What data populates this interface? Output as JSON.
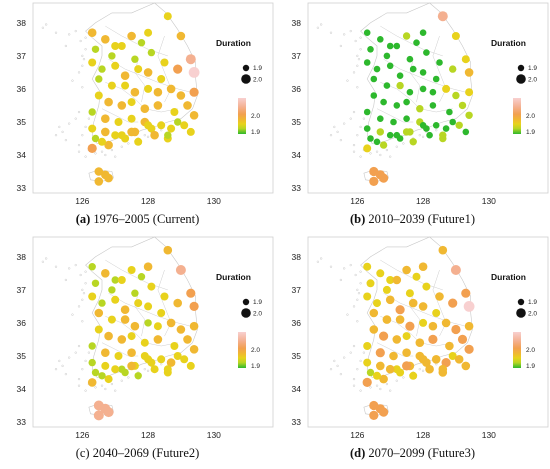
{
  "legend": {
    "title": "Duration",
    "size_labels": [
      "1.9",
      "2.0"
    ],
    "color_labels": [
      "2.0",
      "1.9"
    ]
  },
  "axes": {
    "x_ticks": [
      "126",
      "128",
      "130"
    ],
    "y_ticks": [
      "33",
      "34",
      "35",
      "36",
      "37",
      "38"
    ]
  },
  "colors": {
    "green": "#2db82d",
    "yellow_green": "#b8d623",
    "yellow": "#e8d21c",
    "orange_yellow": "#f0b832",
    "orange": "#f2a050",
    "salmon": "#f4b090",
    "pink": "#f8d0d0",
    "boundary": "#c8c8c8",
    "frame": "#cfcfcf"
  },
  "panels": [
    {
      "label": "(a)",
      "title": "1976–2005 (Current)"
    },
    {
      "label": "(b)",
      "title": "2010–2039 (Future1)"
    },
    {
      "label": "(c)",
      "title": "2040–2069 (Future2)"
    },
    {
      "label": "(d)",
      "title": "2070–2099 (Future3)"
    }
  ],
  "chart_data": {
    "type": "scatter",
    "x": [
      126.3,
      126.7,
      127.0,
      127.5,
      127.8,
      128.0,
      128.6,
      129.0,
      126.4,
      126.9,
      127.2,
      127.6,
      128.1,
      128.5,
      129.3,
      126.3,
      126.6,
      127.0,
      127.3,
      127.7,
      128.0,
      128.4,
      128.9,
      129.4,
      126.5,
      126.9,
      127.3,
      127.6,
      128.0,
      128.3,
      128.7,
      129.0,
      129.4,
      126.5,
      126.8,
      127.2,
      127.5,
      127.9,
      128.3,
      128.8,
      129.2,
      126.3,
      126.7,
      127.1,
      127.5,
      127.9,
      128.4,
      128.9,
      129.4,
      126.3,
      126.7,
      127.2,
      127.6,
      128.1,
      128.7,
      129.1,
      126.4,
      126.8,
      127.3,
      127.7,
      128.2,
      128.6,
      129.3,
      126.3,
      126.6,
      127.0,
      127.5,
      128.0,
      128.6,
      126.5,
      126.8,
      126.5,
      126.7
    ],
    "y": [
      37.7,
      37.5,
      37.3,
      37.6,
      37.4,
      37.7,
      38.2,
      37.6,
      37.2,
      37.0,
      37.3,
      36.9,
      37.1,
      36.8,
      36.9,
      36.8,
      36.6,
      36.7,
      36.4,
      36.6,
      36.5,
      36.3,
      36.6,
      36.5,
      36.3,
      36.1,
      36.1,
      35.9,
      36.0,
      35.9,
      36.0,
      35.8,
      35.9,
      35.8,
      35.6,
      35.5,
      35.6,
      35.4,
      35.5,
      35.3,
      35.5,
      35.3,
      35.1,
      35.0,
      35.1,
      35.0,
      34.9,
      35.0,
      35.2,
      34.8,
      34.7,
      34.6,
      34.7,
      34.8,
      34.8,
      34.9,
      34.5,
      34.3,
      34.5,
      34.4,
      34.6,
      34.5,
      34.7,
      34.2,
      34.4,
      34.6,
      34.7,
      34.9,
      34.6,
      33.5,
      33.3,
      33.2,
      33.4
    ],
    "series": [
      {
        "values": [
          3,
          3,
          2,
          3,
          1,
          2,
          2,
          3,
          1,
          1,
          2,
          1,
          1,
          2,
          5,
          2,
          1,
          2,
          3,
          2,
          3,
          2,
          4,
          6,
          1,
          2,
          2,
          3,
          2,
          3,
          3,
          3,
          4,
          2,
          3,
          3,
          2,
          3,
          3,
          2,
          3,
          1,
          3,
          2,
          2,
          3,
          2,
          1,
          3,
          2,
          3,
          2,
          3,
          2,
          2,
          2,
          1,
          3,
          2,
          2,
          3,
          2,
          2,
          4,
          2,
          2,
          3,
          2,
          1,
          3,
          3,
          3,
          3
        ]
      },
      {
        "values": [
          0,
          0,
          0,
          1,
          0,
          0,
          5,
          2,
          0,
          0,
          0,
          0,
          0,
          0,
          2,
          0,
          0,
          0,
          0,
          0,
          0,
          0,
          1,
          3,
          0,
          0,
          1,
          0,
          0,
          0,
          2,
          1,
          2,
          0,
          0,
          0,
          0,
          1,
          0,
          0,
          1,
          0,
          0,
          0,
          0,
          1,
          0,
          0,
          1,
          0,
          1,
          0,
          1,
          0,
          0,
          1,
          0,
          1,
          0,
          1,
          0,
          1,
          0,
          2,
          0,
          0,
          1,
          0,
          1,
          4,
          4,
          4,
          4
        ]
      },
      {
        "values": [
          1,
          3,
          1,
          2,
          1,
          3,
          3,
          5,
          1,
          1,
          2,
          1,
          2,
          2,
          4,
          2,
          1,
          2,
          3,
          2,
          2,
          2,
          3,
          4,
          3,
          2,
          3,
          3,
          1,
          2,
          3,
          3,
          3,
          2,
          3,
          3,
          2,
          2,
          3,
          2,
          3,
          1,
          3,
          2,
          3,
          2,
          2,
          2,
          3,
          1,
          2,
          1,
          2,
          2,
          3,
          2,
          1,
          2,
          1,
          1,
          2,
          2,
          2,
          3,
          1,
          2,
          3,
          2,
          2,
          5,
          5,
          5,
          5
        ]
      },
      {
        "values": [
          2,
          2,
          2,
          3,
          2,
          3,
          3,
          5,
          2,
          2,
          3,
          2,
          2,
          3,
          4,
          2,
          2,
          3,
          4,
          3,
          3,
          2,
          4,
          6,
          3,
          3,
          3,
          4,
          2,
          3,
          3,
          4,
          3,
          3,
          4,
          3,
          2,
          3,
          4,
          3,
          4,
          2,
          4,
          3,
          3,
          3,
          3,
          2,
          4,
          2,
          3,
          2,
          3,
          3,
          4,
          3,
          1,
          3,
          2,
          2,
          3,
          3,
          3,
          4,
          2,
          3,
          4,
          3,
          3,
          4,
          4,
          4,
          4
        ]
      }
    ],
    "xlim": [
      124.5,
      131.8
    ],
    "ylim": [
      32.85,
      38.6
    ]
  }
}
